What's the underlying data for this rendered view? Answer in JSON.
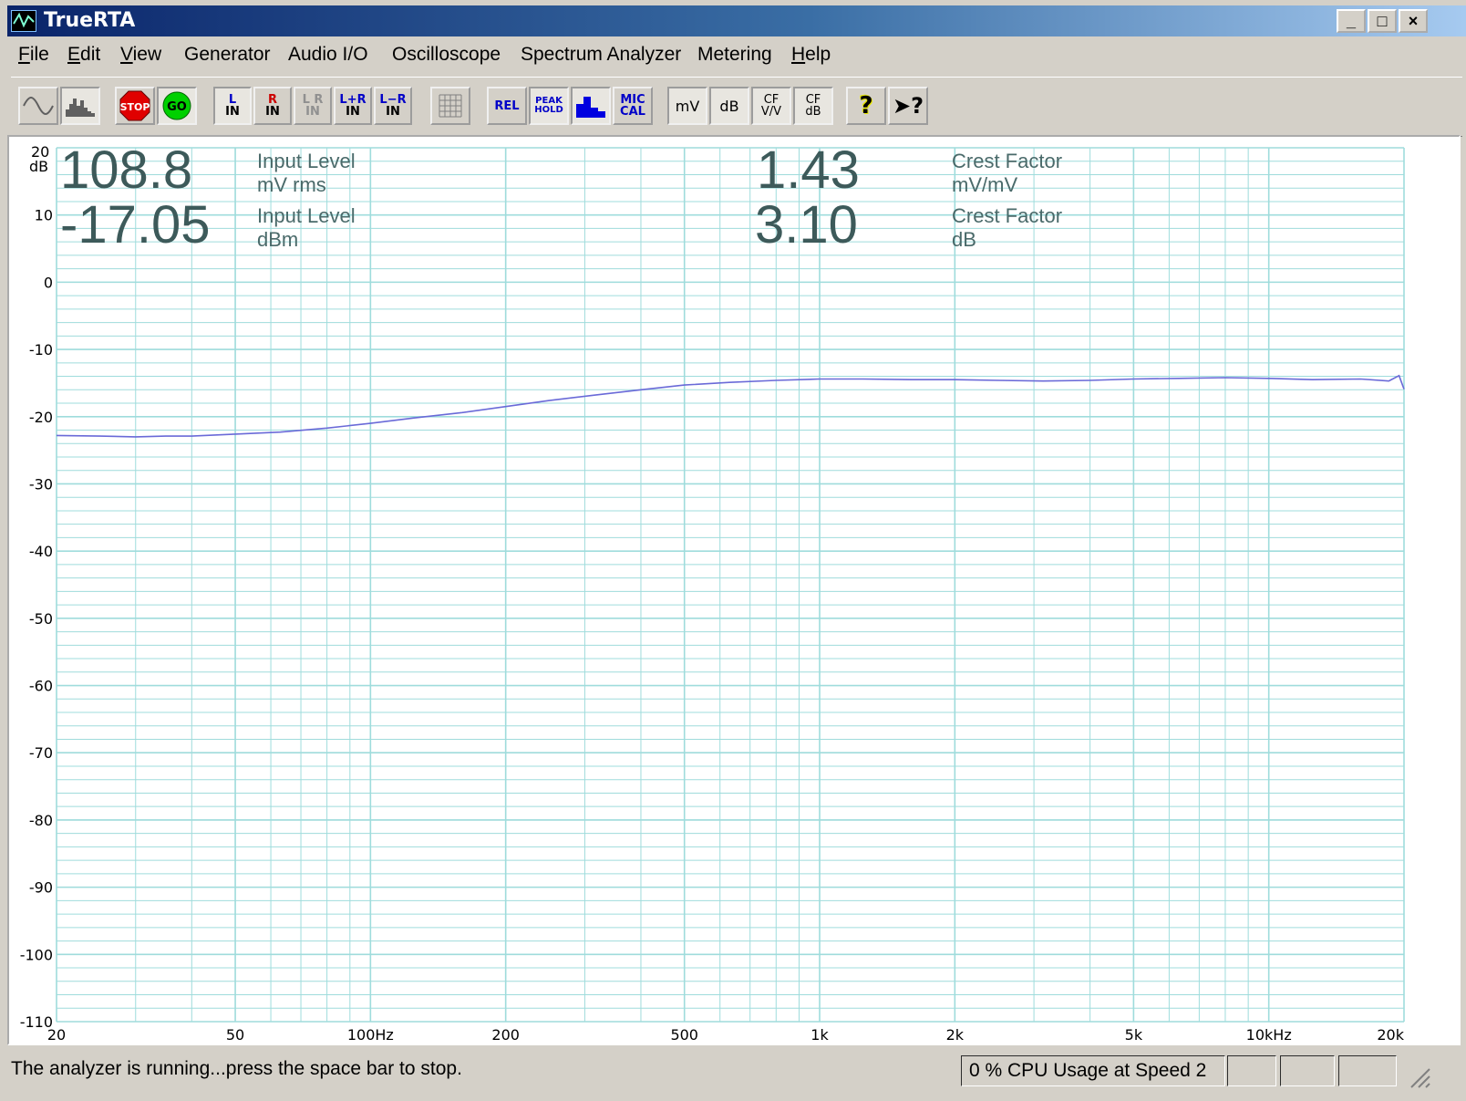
{
  "window": {
    "title": "TrueRTA",
    "buttons": {
      "minimize": "_",
      "maximize": "□",
      "close": "×"
    }
  },
  "menu": [
    {
      "label": "File",
      "accel": "F",
      "rest": "ile"
    },
    {
      "label": "Edit",
      "accel": "E",
      "rest": "dit"
    },
    {
      "label": "View",
      "accel": "V",
      "rest": "iew"
    },
    {
      "label": "Generator",
      "accel": "",
      "rest": "Generator"
    },
    {
      "label": "Audio I/O",
      "accel": "",
      "rest": "Audio I/O"
    },
    {
      "label": "Oscilloscope",
      "accel": "",
      "rest": "Oscilloscope"
    },
    {
      "label": "Spectrum Analyzer",
      "accel": "",
      "rest": "Spectrum Analyzer"
    },
    {
      "label": "Metering",
      "accel": "",
      "rest": "Metering"
    },
    {
      "label": "Help",
      "accel": "H",
      "rest": "elp"
    }
  ],
  "toolbar": {
    "stop": "STOP",
    "go": "GO",
    "l_in": [
      "L",
      "IN"
    ],
    "r_in": [
      "R",
      "IN"
    ],
    "lr_in": [
      "L R",
      "IN"
    ],
    "lpr_in": [
      "L+R",
      "IN"
    ],
    "lmr_in": [
      "L−R",
      "IN"
    ],
    "rel": "REL",
    "peak_hold": [
      "PEAK",
      "HOLD"
    ],
    "mic_cal": [
      "MIC",
      "CAL"
    ],
    "mv": "mV",
    "db": "dB",
    "cf_vv": [
      "CF",
      "V/V"
    ],
    "cf_db": [
      "CF",
      "dB"
    ],
    "help": "?",
    "context_help": "?"
  },
  "readouts": {
    "input_mv": {
      "value": "108.8",
      "label1": "Input Level",
      "label2": "mV rms"
    },
    "input_dbm": {
      "value": "-17.05",
      "label1": "Input Level",
      "label2": "dBm"
    },
    "crest_ratio": {
      "value": "1.43",
      "label1": "Crest Factor",
      "label2": "mV/mV"
    },
    "crest_db": {
      "value": "3.10",
      "label1": "Crest Factor",
      "label2": "dB"
    }
  },
  "status": {
    "message": "The analyzer is running...press the space bar to stop.",
    "cpu": "0 % CPU Usage at Speed 2"
  },
  "colors": {
    "grid": "#9fdcdc",
    "trace": "#6a6ad8",
    "readout": "#3d5a5a"
  },
  "chart_data": {
    "type": "line",
    "x_scale": "log",
    "xlim": [
      20,
      20000
    ],
    "ylim": [
      -110,
      20
    ],
    "yunit": "dB",
    "y_ticks": [
      "20",
      "10",
      "0",
      "-10",
      "-20",
      "-30",
      "-40",
      "-50",
      "-60",
      "-70",
      "-80",
      "-90",
      "-100",
      "-110"
    ],
    "y_tick_values": [
      20,
      10,
      0,
      -10,
      -20,
      -30,
      -40,
      -50,
      -60,
      -70,
      -80,
      -90,
      -100,
      -110
    ],
    "x_ticks": [
      "20",
      "50",
      "100Hz",
      "200",
      "500",
      "1k",
      "2k",
      "5k",
      "10kHz",
      "20k"
    ],
    "x_tick_values": [
      20,
      50,
      100,
      200,
      500,
      1000,
      2000,
      5000,
      10000,
      20000
    ],
    "grid": true,
    "series": [
      {
        "x": [
          20,
          25,
          30,
          35,
          40,
          50,
          63,
          80,
          100,
          125,
          160,
          200,
          250,
          315,
          400,
          500,
          630,
          800,
          1000,
          1250,
          1600,
          2000,
          2500,
          3150,
          4000,
          5000,
          6300,
          8000,
          10000,
          12500,
          16000,
          18500,
          19500,
          20000
        ],
        "y": [
          -22.8,
          -22.9,
          -23.0,
          -22.9,
          -22.9,
          -22.6,
          -22.3,
          -21.7,
          -21.0,
          -20.2,
          -19.4,
          -18.5,
          -17.6,
          -16.8,
          -16.0,
          -15.3,
          -14.9,
          -14.6,
          -14.4,
          -14.4,
          -14.5,
          -14.5,
          -14.6,
          -14.7,
          -14.6,
          -14.4,
          -14.3,
          -14.2,
          -14.3,
          -14.5,
          -14.4,
          -14.7,
          -13.9,
          -15.9
        ]
      }
    ]
  }
}
